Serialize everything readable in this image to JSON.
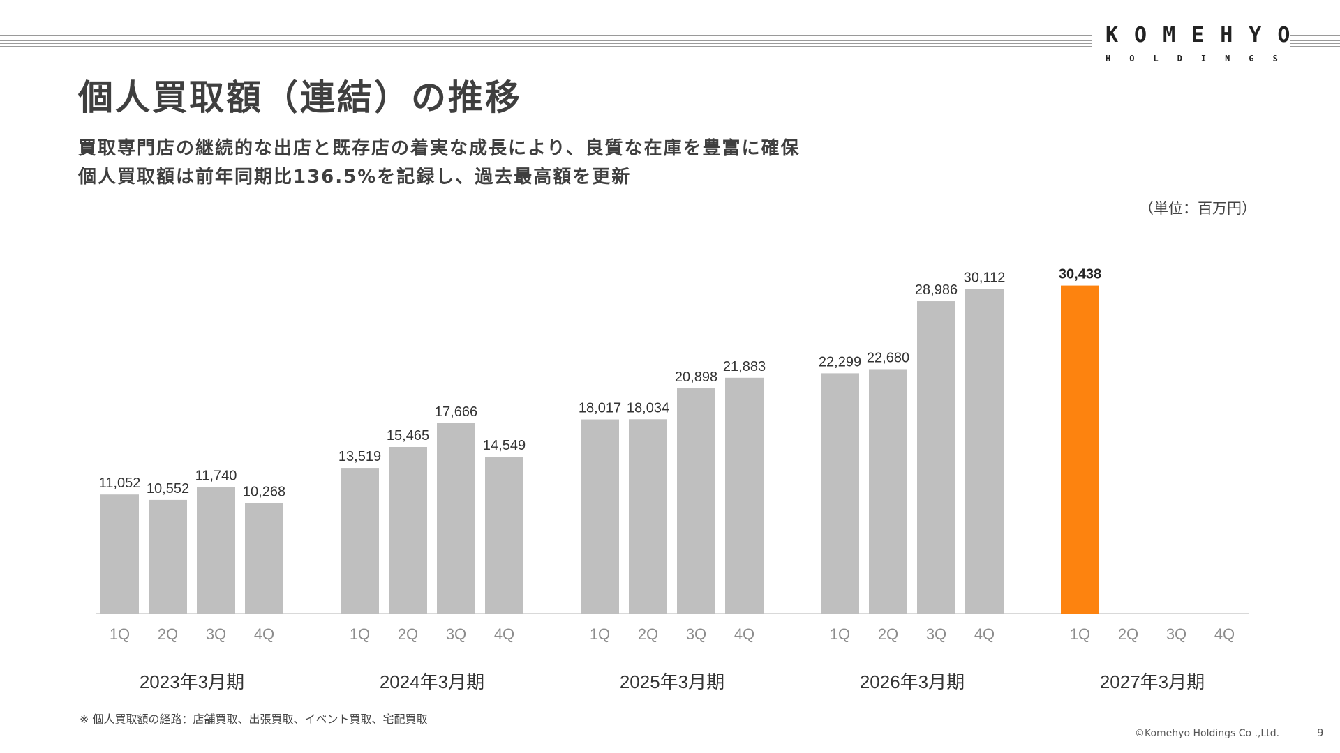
{
  "header": {
    "logo_main": "KOMEHYO",
    "logo_sub": "HOLDINGS"
  },
  "title": "個人買取額（連結）の推移",
  "subtitle_lines": [
    "買取専門店の継続的な出店と既存店の着実な成長により、良質な在庫を豊富に確保",
    "個人買取額は前年同期比136.5%を記録し、過去最高額を更新"
  ],
  "unit_label": "（単位：百万円）",
  "chart_data": {
    "type": "bar",
    "groups": [
      "2023年3月期",
      "2024年3月期",
      "2025年3月期",
      "2026年3月期",
      "2027年3月期"
    ],
    "quarters": [
      "1Q",
      "2Q",
      "3Q",
      "4Q"
    ],
    "values": [
      [
        11052,
        10552,
        11740,
        10268
      ],
      [
        13519,
        15465,
        17666,
        14549
      ],
      [
        18017,
        18034,
        20898,
        21883
      ],
      [
        22299,
        22680,
        28986,
        30112
      ],
      [
        30438,
        null,
        null,
        null
      ]
    ],
    "labels": [
      [
        "11,052",
        "10,552",
        "11,740",
        "10,268"
      ],
      [
        "13,519",
        "15,465",
        "17,666",
        "14,549"
      ],
      [
        "18,017",
        "18,034",
        "20,898",
        "21,883"
      ],
      [
        "22,299",
        "22,680",
        "28,986",
        "30,112"
      ],
      [
        "30,438",
        "",
        "",
        ""
      ]
    ],
    "highlight": {
      "group": 4,
      "quarter": 0
    },
    "colors": {
      "bar": "#bfbfbf",
      "highlight": "#fd830f",
      "axis": "#d9d9d9"
    },
    "ylim": [
      0,
      33000
    ],
    "grid": false,
    "legend": "none"
  },
  "footnote": "※ 個人買取額の経路：店舗買取、出張買取、イベント買取、宅配買取",
  "copyright": "©Komehyo Holdings Co .,Ltd.",
  "page_number": "9"
}
